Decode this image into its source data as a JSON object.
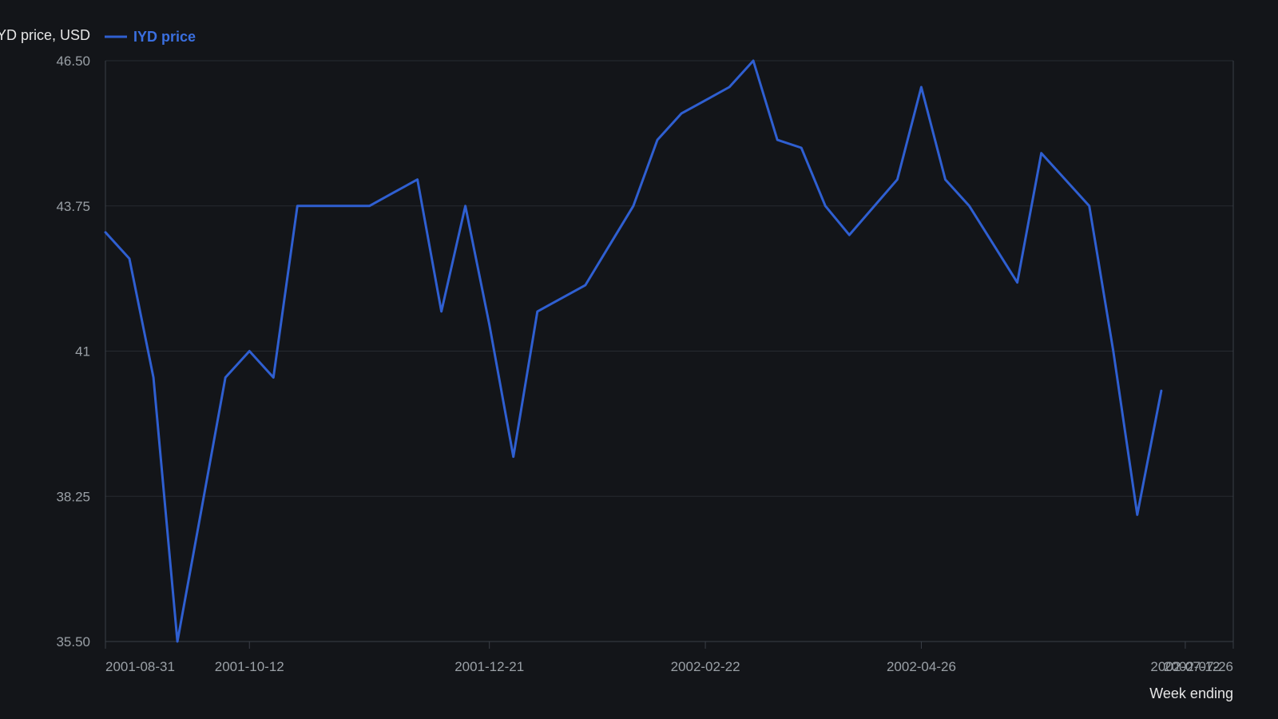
{
  "chart_data": {
    "type": "line",
    "ylabel": "IYD price, USD",
    "xlabel": "Week ending",
    "ylim": [
      35.5,
      46.5
    ],
    "yticks": [
      "35.50",
      "38.25",
      "41",
      "43.75",
      "46.50"
    ],
    "xtick_labels": [
      "2001-08-31",
      "2001-10-12",
      "2001-12-21",
      "2002-02-22",
      "2002-04-26",
      "2002-07-12",
      "2002-07-26"
    ],
    "legend": {
      "position": "top-left",
      "entries": [
        "IYD price"
      ]
    },
    "grid": "horizontal",
    "colors": {
      "line": "#2f5fd1",
      "background": "#131519",
      "grid": "#262a31",
      "axis": "#3a3f47"
    },
    "series": [
      {
        "name": "IYD price",
        "x": [
          "2001-08-31",
          "2001-09-07",
          "2001-09-14",
          "2001-09-21",
          "2001-09-28",
          "2001-10-05",
          "2001-10-12",
          "2001-10-19",
          "2001-10-26",
          "2001-11-02",
          "2001-11-09",
          "2001-11-16",
          "2001-11-23",
          "2001-11-30",
          "2001-12-07",
          "2001-12-14",
          "2001-12-21",
          "2001-12-28",
          "2002-01-04",
          "2002-01-11",
          "2002-01-18",
          "2002-01-25",
          "2002-02-01",
          "2002-02-08",
          "2002-02-15",
          "2002-02-22",
          "2002-03-01",
          "2002-03-08",
          "2002-03-15",
          "2002-03-22",
          "2002-03-29",
          "2002-04-05",
          "2002-04-12",
          "2002-04-19",
          "2002-04-26",
          "2002-05-03",
          "2002-05-10",
          "2002-05-17",
          "2002-05-24",
          "2002-05-31",
          "2002-06-07",
          "2002-06-14",
          "2002-06-21",
          "2002-06-28",
          "2002-07-05",
          "2002-07-12",
          "2002-07-19",
          "2002-07-26"
        ],
        "values": [
          43.25,
          42.75,
          40.5,
          35.5,
          38.0,
          40.5,
          41.0,
          40.5,
          43.75,
          43.75,
          43.75,
          43.75,
          44.0,
          44.25,
          41.75,
          43.75,
          41.5,
          39.0,
          41.75,
          42.0,
          42.25,
          43.0,
          43.75,
          45.0,
          45.5,
          45.75,
          46.0,
          46.5,
          45.0,
          44.85,
          43.75,
          43.2,
          null,
          44.25,
          46.0,
          44.25,
          43.75,
          null,
          42.3,
          44.75,
          44.25,
          43.75,
          41.0,
          37.9,
          40.25,
          null,
          null,
          null
        ]
      }
    ]
  }
}
